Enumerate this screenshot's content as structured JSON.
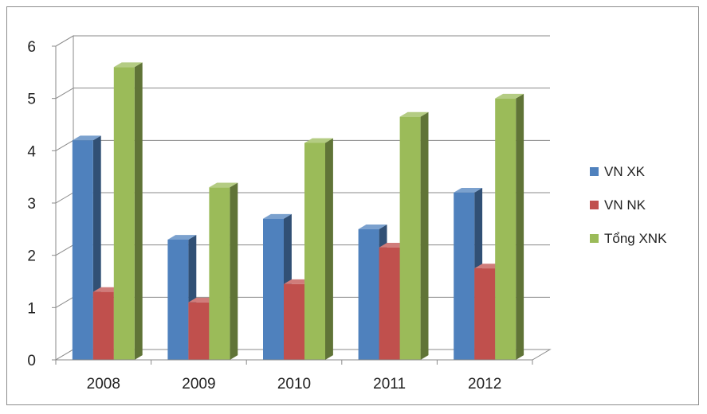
{
  "chart_data": {
    "type": "bar",
    "style": "3d-clustered-column",
    "categories": [
      "2008",
      "2009",
      "2010",
      "2011",
      "2012"
    ],
    "series": [
      {
        "name": "VN XK",
        "values": [
          4.2,
          2.3,
          2.7,
          2.5,
          3.2
        ],
        "color": "#4f81bd"
      },
      {
        "name": "VN NK",
        "values": [
          1.3,
          1.1,
          1.45,
          2.15,
          1.75
        ],
        "color": "#c0504d"
      },
      {
        "name": "Tổng XNK",
        "values": [
          5.6,
          3.3,
          4.15,
          4.65,
          5.0
        ],
        "color": "#9bbb59"
      }
    ],
    "yticks": [
      "0",
      "1",
      "2",
      "3",
      "4",
      "5",
      "6"
    ],
    "ylim": [
      0,
      6
    ],
    "grid": true,
    "legend_position": "right"
  }
}
